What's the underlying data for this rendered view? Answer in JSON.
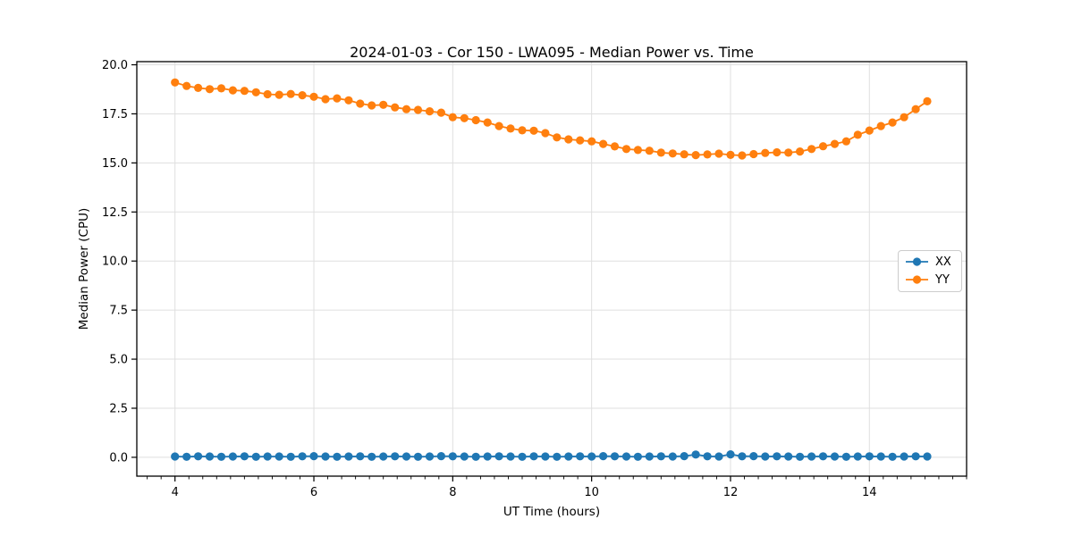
{
  "chart_data": {
    "type": "line",
    "title": "2024-01-03 - Cor 150 - LWA095 - Median Power vs. Time",
    "xlabel": "UT Time (hours)",
    "ylabel": "Median Power (CPU)",
    "xlim": [
      3.45,
      15.4
    ],
    "ylim": [
      -0.96,
      20.16
    ],
    "grid": true,
    "legend_position": "center right",
    "xticks": {
      "values": [
        4,
        6,
        8,
        10,
        12,
        14
      ],
      "labels": [
        "4",
        "6",
        "8",
        "10",
        "12",
        "14"
      ]
    },
    "minor_xtick_step": 0.2,
    "yticks": {
      "values": [
        0,
        2.5,
        5,
        7.5,
        10,
        12.5,
        15,
        17.5,
        20
      ],
      "labels": [
        "0.0",
        "2.5",
        "5.0",
        "7.5",
        "10.0",
        "12.5",
        "15.0",
        "17.5",
        "20.0"
      ]
    },
    "x": [
      4.0,
      4.167,
      4.333,
      4.5,
      4.667,
      4.833,
      5.0,
      5.167,
      5.333,
      5.5,
      5.667,
      5.833,
      6.0,
      6.167,
      6.333,
      6.5,
      6.667,
      6.833,
      7.0,
      7.167,
      7.333,
      7.5,
      7.667,
      7.833,
      8.0,
      8.167,
      8.333,
      8.5,
      8.667,
      8.833,
      9.0,
      9.167,
      9.333,
      9.5,
      9.667,
      9.833,
      10.0,
      10.167,
      10.333,
      10.5,
      10.667,
      10.833,
      11.0,
      11.167,
      11.333,
      11.5,
      11.667,
      11.833,
      12.0,
      12.167,
      12.333,
      12.5,
      12.667,
      12.833,
      13.0,
      13.167,
      13.333,
      13.5,
      13.667,
      13.833,
      14.0,
      14.167,
      14.333,
      14.5,
      14.667,
      14.833
    ],
    "series": [
      {
        "name": "XX",
        "color": "#1f77b4",
        "values": [
          0.04,
          0.03,
          0.05,
          0.04,
          0.03,
          0.04,
          0.05,
          0.03,
          0.04,
          0.04,
          0.03,
          0.05,
          0.06,
          0.04,
          0.03,
          0.04,
          0.05,
          0.03,
          0.04,
          0.05,
          0.04,
          0.03,
          0.04,
          0.06,
          0.05,
          0.04,
          0.03,
          0.04,
          0.05,
          0.04,
          0.03,
          0.05,
          0.04,
          0.03,
          0.04,
          0.05,
          0.04,
          0.06,
          0.05,
          0.04,
          0.03,
          0.04,
          0.05,
          0.04,
          0.06,
          0.14,
          0.05,
          0.04,
          0.15,
          0.05,
          0.06,
          0.04,
          0.05,
          0.04,
          0.03,
          0.04,
          0.05,
          0.04,
          0.03,
          0.04,
          0.05,
          0.04,
          0.03,
          0.04,
          0.05,
          0.04
        ]
      },
      {
        "name": "YY",
        "color": "#ff7f0e",
        "values": [
          19.1,
          18.92,
          18.82,
          18.76,
          18.8,
          18.7,
          18.67,
          18.6,
          18.5,
          18.47,
          18.51,
          18.45,
          18.37,
          18.25,
          18.29,
          18.19,
          18.02,
          17.93,
          17.96,
          17.83,
          17.74,
          17.7,
          17.63,
          17.56,
          17.33,
          17.28,
          17.18,
          17.06,
          16.88,
          16.75,
          16.66,
          16.64,
          16.52,
          16.3,
          16.2,
          16.15,
          16.1,
          15.97,
          15.84,
          15.71,
          15.66,
          15.62,
          15.52,
          15.48,
          15.44,
          15.4,
          15.43,
          15.47,
          15.41,
          15.38,
          15.45,
          15.51,
          15.54,
          15.52,
          15.58,
          15.71,
          15.85,
          15.97,
          16.1,
          16.43,
          16.65,
          16.88,
          17.06,
          17.33,
          17.74,
          18.14
        ]
      }
    ]
  },
  "legend": {
    "entries": [
      {
        "label": "XX",
        "color": "#1f77b4"
      },
      {
        "label": "YY",
        "color": "#ff7f0e"
      }
    ]
  },
  "style": {
    "grid_color": "#dfdfdf",
    "spine_color": "#000000",
    "tick_label_color": "#000000",
    "background": "#ffffff"
  }
}
